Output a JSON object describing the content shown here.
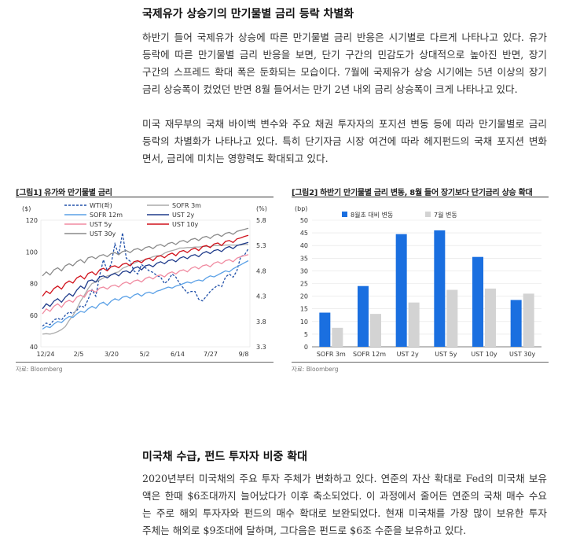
{
  "section1": {
    "title": "국제유가 상승기의 만기물별 금리 등락 차별화",
    "para1": [
      "하반기 들어 국제유가 상승에 따른 만기물별 금리 반응은 시기별로 다르게 나타나고 있다. 유가",
      "등락에 따른 만기물별 금리 반응을 보면, 단기 구간의 민감도가 상대적으로 높아진 반면, 장기",
      "구간의 스프레드 확대 폭은 둔화되는 모습이다. 7월에 국제유가 상승 시기에는 5년 이상의 장기",
      "금리 상승폭이 컸었던 반면 8월 들어서는 만기 2년 내외 금리 상승폭이 크게 나타나고 있다."
    ],
    "para2": [
      "미국 재무부의 국채 바이백 변수와 주요 채권 투자자의 포지션 변동 등에 따라 만기물별로 금리",
      "등락의 차별화가 나타나고 있다. 특히 단기자금 시장 여건에 따라 헤지펀드의 국채 포지션 변화",
      "면서, 금리에 미치는 영향력도 확대되고 있다."
    ]
  },
  "figure1": {
    "title": "[그림1] 유가와 만기물별 금리",
    "source": "자료: Bloomberg",
    "chart_data": {
      "type": "line",
      "left_axis_unit": "($)",
      "right_axis_unit": "(%)",
      "left_ylim": [
        40,
        120
      ],
      "left_ticks": [
        "120",
        "100",
        "80",
        "60",
        "40"
      ],
      "right_ylim": [
        3.3,
        5.8
      ],
      "right_ticks": [
        "5.8",
        "5.3",
        "4.8",
        "4.3",
        "3.8",
        "3.3"
      ],
      "x_ticks": [
        "12/24",
        "2/5",
        "3/20",
        "5/2",
        "6/14",
        "7/27",
        "9/8"
      ],
      "series": [
        {
          "name": "WTI(좌)",
          "axis": "left",
          "color": "#1f4fa8",
          "dashed": true,
          "values": [
            53,
            55,
            54,
            57,
            58,
            57,
            60,
            62,
            61,
            63,
            66,
            65,
            70,
            76,
            72,
            85,
            95,
            88,
            92,
            105,
            98,
            112,
            96,
            94,
            88,
            86,
            92,
            90,
            88,
            87,
            85,
            84,
            80,
            82,
            86,
            84,
            80,
            77,
            74,
            75,
            75,
            70,
            69,
            72,
            75,
            77,
            79,
            78,
            84,
            86,
            84,
            88,
            97,
            98,
            102
          ]
        },
        {
          "name": "SOFR 3m",
          "axis": "right",
          "color": "#aaaaaa",
          "values": [
            3.55,
            3.56,
            3.55,
            3.57,
            3.6,
            3.64,
            3.7,
            3.82,
            3.92,
            4.05,
            4.2,
            4.32,
            4.45,
            4.55,
            4.58,
            4.62,
            4.66,
            4.7,
            4.72,
            4.76,
            4.78,
            4.85,
            4.88,
            4.92,
            4.95,
            4.98,
            5.0,
            5.02,
            5.05,
            5.08,
            5.1,
            5.1,
            5.15,
            5.18,
            5.2,
            5.22,
            5.25,
            5.25,
            5.26,
            5.26,
            5.27,
            5.27,
            5.28,
            5.28,
            5.28,
            5.3,
            5.3,
            5.3,
            5.31,
            5.31,
            5.31,
            5.31,
            5.31,
            5.32,
            5.32
          ]
        },
        {
          "name": "SOFR 12m",
          "axis": "right",
          "color": "#5aa0e6",
          "values": [
            3.65,
            3.7,
            3.68,
            3.75,
            3.8,
            3.78,
            3.85,
            3.9,
            3.88,
            3.95,
            4.0,
            3.98,
            4.05,
            4.1,
            4.06,
            4.15,
            4.18,
            4.12,
            4.2,
            4.25,
            4.22,
            4.28,
            4.3,
            4.26,
            4.32,
            4.35,
            4.3,
            4.36,
            4.38,
            4.35,
            4.4,
            4.42,
            4.45,
            4.48,
            4.46,
            4.5,
            4.52,
            4.55,
            4.58,
            4.56,
            4.6,
            4.62,
            4.6,
            4.66,
            4.7,
            4.68,
            4.72,
            4.76,
            4.8,
            4.78,
            4.84,
            4.88,
            4.92,
            4.96,
            5.0
          ]
        },
        {
          "name": "UST 2y",
          "axis": "right",
          "color": "#1e3a8a",
          "values": [
            4.05,
            4.15,
            4.1,
            4.2,
            4.25,
            4.18,
            4.28,
            4.35,
            4.3,
            4.42,
            4.5,
            4.45,
            4.6,
            4.62,
            4.58,
            4.68,
            4.7,
            4.66,
            4.72,
            4.75,
            4.7,
            4.78,
            4.8,
            4.76,
            4.85,
            4.88,
            4.82,
            4.9,
            4.92,
            4.88,
            4.95,
            4.98,
            4.94,
            5.0,
            5.02,
            4.98,
            5.05,
            5.08,
            5.04,
            5.1,
            5.12,
            5.08,
            5.15,
            5.18,
            5.14,
            5.2,
            5.22,
            5.18,
            5.25,
            5.28,
            5.24,
            5.3,
            5.32,
            5.34,
            5.36
          ]
        },
        {
          "name": "UST 5y",
          "axis": "right",
          "color": "#f08aa0",
          "values": [
            3.95,
            4.05,
            4.0,
            4.1,
            4.15,
            4.08,
            4.18,
            4.22,
            4.18,
            4.28,
            4.32,
            4.28,
            4.4,
            4.42,
            4.38,
            4.46,
            4.48,
            4.44,
            4.5,
            4.52,
            4.48,
            4.55,
            4.58,
            4.54,
            4.6,
            4.62,
            4.58,
            4.65,
            4.68,
            4.64,
            4.7,
            4.72,
            4.68,
            4.75,
            4.78,
            4.74,
            4.8,
            4.82,
            4.78,
            4.85,
            4.88,
            4.84,
            4.9,
            4.92,
            4.88,
            4.95,
            4.98,
            4.94,
            5.0,
            5.02,
            4.98,
            5.05,
            5.08,
            5.1,
            5.12
          ]
        },
        {
          "name": "UST 10y",
          "axis": "right",
          "color": "#d0101a",
          "values": [
            4.3,
            4.4,
            4.35,
            4.45,
            4.5,
            4.44,
            4.55,
            4.6,
            4.56,
            4.66,
            4.7,
            4.64,
            4.75,
            4.78,
            4.72,
            4.82,
            4.85,
            4.8,
            4.88,
            4.9,
            4.86,
            4.93,
            4.95,
            4.9,
            4.98,
            5.0,
            4.96,
            5.03,
            5.05,
            5.0,
            5.08,
            5.1,
            5.06,
            5.12,
            5.15,
            5.1,
            5.18,
            5.2,
            5.16,
            5.22,
            5.25,
            5.2,
            5.28,
            5.3,
            5.26,
            5.33,
            5.35,
            5.3,
            5.38,
            5.4,
            5.36,
            5.43,
            5.45,
            5.48,
            5.5
          ]
        },
        {
          "name": "UST 30y",
          "axis": "right",
          "color": "#8a8a8a",
          "values": [
            4.7,
            4.78,
            4.72,
            4.82,
            4.86,
            4.8,
            4.9,
            4.94,
            4.9,
            4.98,
            5.02,
            4.96,
            5.06,
            5.08,
            5.04,
            5.1,
            5.12,
            5.08,
            5.14,
            5.16,
            5.12,
            5.18,
            5.2,
            5.16,
            5.22,
            5.24,
            5.2,
            5.26,
            5.28,
            5.24,
            5.3,
            5.32,
            5.28,
            5.34,
            5.36,
            5.32,
            5.38,
            5.4,
            5.36,
            5.42,
            5.44,
            5.4,
            5.46,
            5.48,
            5.44,
            5.5,
            5.52,
            5.48,
            5.54,
            5.56,
            5.52,
            5.58,
            5.6,
            5.62,
            5.64
          ]
        }
      ]
    }
  },
  "figure2": {
    "title": "[그림2] 하반기 만기물별 금리 변동, 8월 들어 장기보다 단기금리 상승 확대",
    "source": "자료: Bloomberg",
    "chart_data": {
      "type": "bar",
      "unit": "(bp)",
      "ylim": [
        0,
        50
      ],
      "y_ticks": [
        "50",
        "45",
        "40",
        "35",
        "30",
        "25",
        "20",
        "15",
        "10",
        "5",
        "0"
      ],
      "categories": [
        "SOFR 3m",
        "SOFR 12m",
        "UST 2y",
        "UST 5y",
        "UST 10y",
        "UST 30y"
      ],
      "series": [
        {
          "name": "8월초 대비 변동",
          "color": "#1a6fe0",
          "values": [
            13.5,
            24,
            44.5,
            46,
            35.5,
            18.5
          ]
        },
        {
          "name": "7월 변동",
          "color": "#d3d3d3",
          "values": [
            7.5,
            13,
            17.5,
            22.5,
            23,
            21
          ]
        }
      ]
    }
  },
  "section2": {
    "title": "미국채 수급, 펀드 투자자 비중 확대",
    "para": [
      "2020년부터 미국채의 주요 투자 주체가 변화하고 있다. 연준의 자산 확대로 Fed의 미국채 보유",
      "액은 한때 $6조대까지 늘어났다가 이후 축소되었다. 이 과정에서 줄어든 연준의 국채 매수 수요",
      "는 주로 해외 투자자와 펀드의 매수 확대로 보완되었다. 현재 미국채를 가장 많이 보유한 투자",
      "주체는 해외로 $9조대에 달하며, 그다음은 펀드로 $6조 수준을 보유하고 있다."
    ]
  }
}
